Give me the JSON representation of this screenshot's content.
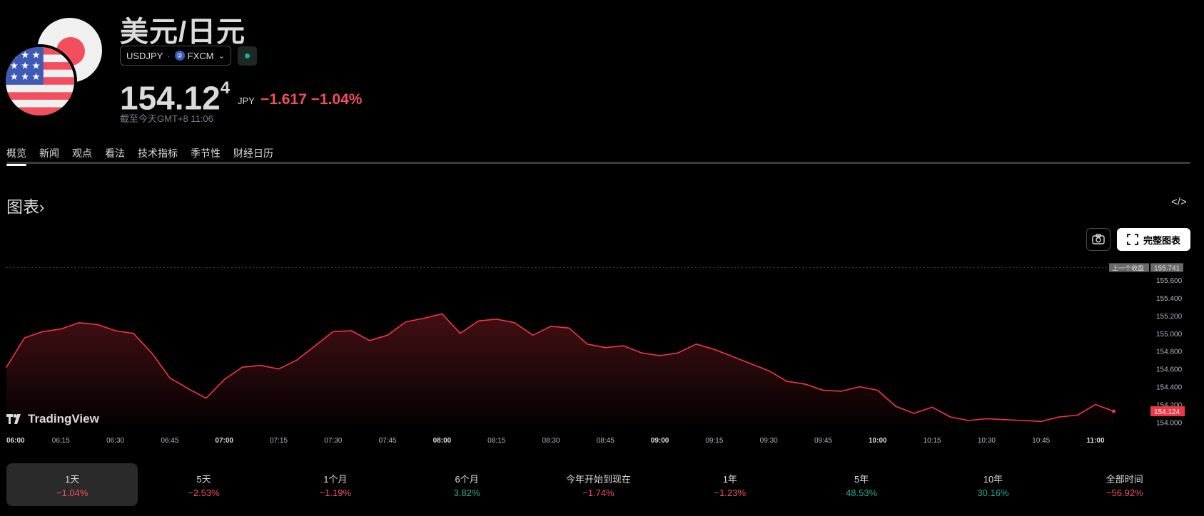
{
  "header": {
    "title": "美元/日元",
    "symbol": "USDJPY",
    "separator": "·",
    "exchange": "FXCM",
    "exchange_icon_glyph": "②",
    "market_status": "market-open",
    "status_color": "#22ab94",
    "price_main": "154.12",
    "price_super": "4",
    "currency": "JPY",
    "change": "−1.617 −1.04%",
    "as_of": "截至今天GMT+8 11:06"
  },
  "tabs": [
    {
      "label": "概览",
      "active": true
    },
    {
      "label": "新闻"
    },
    {
      "label": "观点"
    },
    {
      "label": "看法"
    },
    {
      "label": "技术指标"
    },
    {
      "label": "季节性"
    },
    {
      "label": "财经日历"
    }
  ],
  "section": {
    "title": "图表",
    "arrow": "›",
    "embed_icon": "</>"
  },
  "buttons": {
    "full_chart": "完整图表",
    "camera_icon": "camera-icon"
  },
  "logo": {
    "text": "TradingView"
  },
  "chart_data": {
    "type": "area",
    "title": "",
    "line_color": "#f23645",
    "x_labels": [
      {
        "label": "06:00",
        "bold": true
      },
      {
        "label": "06:15"
      },
      {
        "label": "06:30"
      },
      {
        "label": "06:45"
      },
      {
        "label": "07:00",
        "bold": true
      },
      {
        "label": "07:15"
      },
      {
        "label": "07:30"
      },
      {
        "label": "07:45"
      },
      {
        "label": "08:00",
        "bold": true
      },
      {
        "label": "08:15"
      },
      {
        "label": "08:30"
      },
      {
        "label": "08:45"
      },
      {
        "label": "09:00",
        "bold": true
      },
      {
        "label": "09:15"
      },
      {
        "label": "09:30"
      },
      {
        "label": "09:45"
      },
      {
        "label": "10:00",
        "bold": true
      },
      {
        "label": "10:15"
      },
      {
        "label": "10:30"
      },
      {
        "label": "10:45"
      },
      {
        "label": "11:00",
        "bold": true
      }
    ],
    "y_ticks": [
      "154.000",
      "154.200",
      "154.400",
      "154.600",
      "154.800",
      "155.000",
      "155.200",
      "155.400",
      "155.600"
    ],
    "ylim": [
      153.98,
      155.76
    ],
    "prev_close": {
      "label": "上一个收盘",
      "value": 155.741,
      "value_text": "155.741"
    },
    "last": {
      "value": 154.124,
      "value_text": "154.124"
    },
    "x": [
      "06:00",
      "06:05",
      "06:10",
      "06:15",
      "06:20",
      "06:25",
      "06:30",
      "06:35",
      "06:40",
      "06:45",
      "06:50",
      "06:55",
      "07:00",
      "07:05",
      "07:10",
      "07:15",
      "07:20",
      "07:25",
      "07:30",
      "07:35",
      "07:40",
      "07:45",
      "07:50",
      "07:55",
      "08:00",
      "08:05",
      "08:10",
      "08:15",
      "08:20",
      "08:25",
      "08:30",
      "08:35",
      "08:40",
      "08:45",
      "08:50",
      "08:55",
      "09:00",
      "09:05",
      "09:10",
      "09:15",
      "09:20",
      "09:25",
      "09:30",
      "09:35",
      "09:40",
      "09:45",
      "09:50",
      "09:55",
      "10:00",
      "10:05",
      "10:10",
      "10:15",
      "10:20",
      "10:25",
      "10:30",
      "10:35",
      "10:40",
      "10:45",
      "10:50",
      "10:55",
      "11:00",
      "11:05"
    ],
    "values": [
      154.62,
      154.95,
      155.02,
      155.05,
      155.12,
      155.1,
      155.03,
      155.0,
      154.78,
      154.5,
      154.38,
      154.27,
      154.48,
      154.62,
      154.64,
      154.6,
      154.7,
      154.86,
      155.02,
      155.03,
      154.92,
      154.98,
      155.13,
      155.17,
      155.22,
      155.0,
      155.14,
      155.16,
      155.12,
      154.98,
      155.08,
      155.06,
      154.88,
      154.84,
      154.86,
      154.78,
      154.75,
      154.78,
      154.88,
      154.82,
      154.74,
      154.66,
      154.58,
      154.46,
      154.43,
      154.36,
      154.35,
      154.4,
      154.36,
      154.18,
      154.1,
      154.17,
      154.06,
      154.02,
      154.04,
      154.03,
      154.02,
      154.01,
      154.06,
      154.08,
      154.2,
      154.124
    ]
  },
  "periods": [
    {
      "label": "1天",
      "value": "−1.04%",
      "dir": "neg",
      "active": true
    },
    {
      "label": "5天",
      "value": "−2.53%",
      "dir": "neg"
    },
    {
      "label": "1个月",
      "value": "−1.19%",
      "dir": "neg"
    },
    {
      "label": "6个月",
      "value": "3.82%",
      "dir": "pos"
    },
    {
      "label": "今年开始到现在",
      "value": "−1.74%",
      "dir": "neg"
    },
    {
      "label": "1年",
      "value": "−1.23%",
      "dir": "neg"
    },
    {
      "label": "5年",
      "value": "48.53%",
      "dir": "pos"
    },
    {
      "label": "10年",
      "value": "30.16%",
      "dir": "pos"
    },
    {
      "label": "全部时间",
      "value": "−56.92%",
      "dir": "neg"
    }
  ]
}
